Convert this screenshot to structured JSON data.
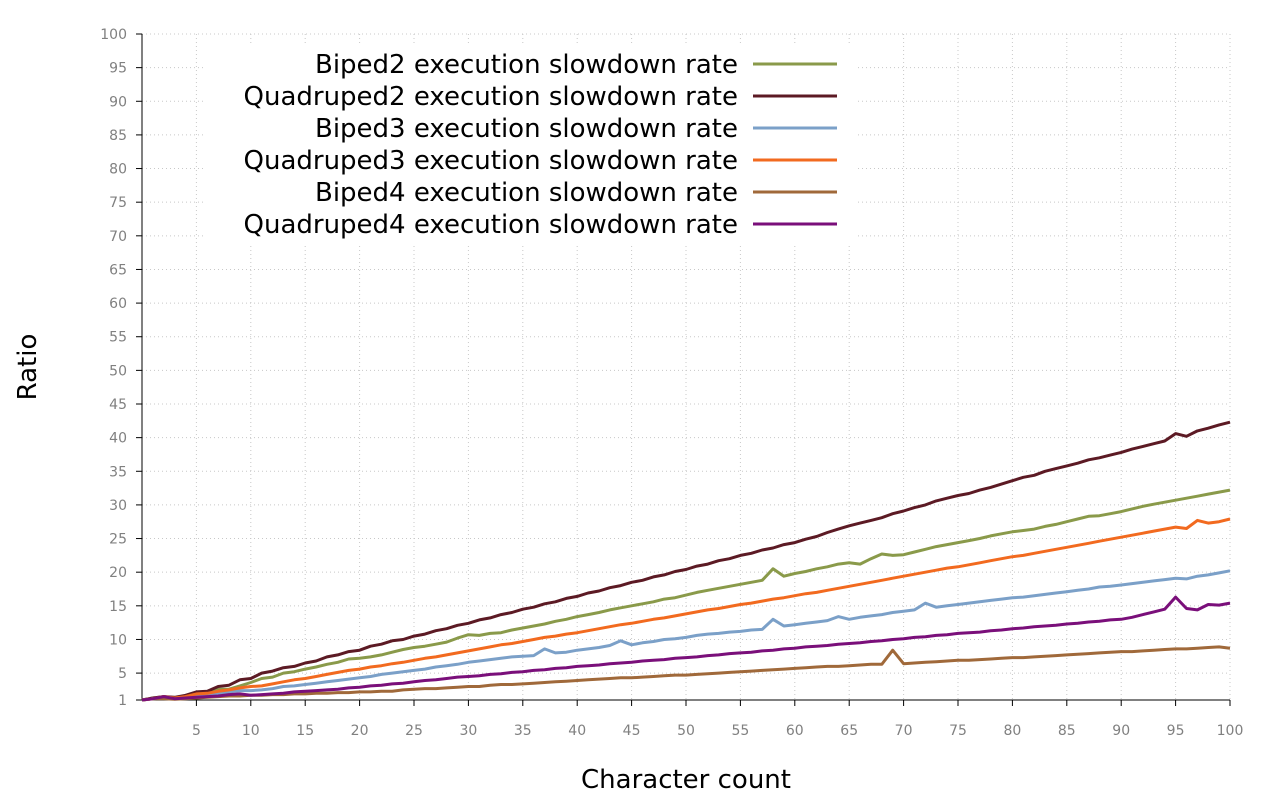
{
  "chart_data": {
    "type": "line",
    "title": "",
    "xlabel": "Character count",
    "ylabel": "Ratio",
    "xlim": [
      0,
      100
    ],
    "ylim": [
      1,
      100
    ],
    "x_ticks": [
      5,
      10,
      15,
      20,
      25,
      30,
      35,
      40,
      45,
      50,
      55,
      60,
      65,
      70,
      75,
      80,
      85,
      90,
      95,
      100
    ],
    "y_ticks": [
      1,
      5,
      10,
      15,
      20,
      25,
      30,
      35,
      40,
      45,
      50,
      55,
      60,
      65,
      70,
      75,
      80,
      85,
      90,
      95,
      100
    ],
    "grid": true,
    "legend_position": "top-left",
    "x": [
      0,
      1,
      2,
      3,
      4,
      5,
      6,
      7,
      8,
      9,
      10,
      11,
      12,
      13,
      14,
      15,
      16,
      17,
      18,
      19,
      20,
      21,
      22,
      23,
      24,
      25,
      26,
      27,
      28,
      29,
      30,
      31,
      32,
      33,
      34,
      35,
      36,
      37,
      38,
      39,
      40,
      41,
      42,
      43,
      44,
      45,
      46,
      47,
      48,
      49,
      50,
      51,
      52,
      53,
      54,
      55,
      56,
      57,
      58,
      59,
      60,
      61,
      62,
      63,
      64,
      65,
      66,
      67,
      68,
      69,
      70,
      71,
      72,
      73,
      74,
      75,
      76,
      77,
      78,
      79,
      80,
      81,
      82,
      83,
      84,
      85,
      86,
      87,
      88,
      89,
      90,
      91,
      92,
      93,
      94,
      95,
      96,
      97,
      98,
      99,
      100
    ],
    "series": [
      {
        "name": "Biped2 execution slowdown rate",
        "color": "#8a9a4a",
        "values": [
          1.0,
          1.3,
          1.5,
          1.3,
          1.4,
          1.8,
          2.0,
          2.6,
          2.6,
          3.1,
          3.6,
          4.2,
          4.4,
          5.0,
          5.2,
          5.6,
          5.9,
          6.3,
          6.6,
          7.1,
          7.2,
          7.4,
          7.7,
          8.1,
          8.5,
          8.8,
          9.0,
          9.3,
          9.6,
          10.2,
          10.7,
          10.6,
          10.9,
          11.0,
          11.4,
          11.7,
          12.0,
          12.3,
          12.7,
          13.0,
          13.4,
          13.7,
          14.0,
          14.4,
          14.7,
          15.0,
          15.3,
          15.6,
          16.0,
          16.2,
          16.6,
          17.0,
          17.3,
          17.6,
          17.9,
          18.2,
          18.5,
          18.8,
          20.5,
          19.4,
          19.8,
          20.1,
          20.5,
          20.8,
          21.2,
          21.4,
          21.2,
          22.0,
          22.7,
          22.5,
          22.6,
          23.0,
          23.4,
          23.8,
          24.1,
          24.4,
          24.7,
          25.0,
          25.4,
          25.7,
          26.0,
          26.2,
          26.4,
          26.8,
          27.1,
          27.5,
          27.9,
          28.3,
          28.4,
          28.7,
          29.0,
          29.4,
          29.8,
          30.1,
          30.4,
          30.7,
          31.0,
          31.3,
          31.6,
          31.9,
          32.2
        ]
      },
      {
        "name": "Quadruped2 execution slowdown rate",
        "color": "#5c1a24",
        "values": [
          1.0,
          1.3,
          1.5,
          1.4,
          1.7,
          2.2,
          2.3,
          3.0,
          3.2,
          4.0,
          4.2,
          5.0,
          5.3,
          5.8,
          6.0,
          6.5,
          6.8,
          7.4,
          7.7,
          8.2,
          8.4,
          9.0,
          9.3,
          9.8,
          10.0,
          10.5,
          10.8,
          11.3,
          11.6,
          12.1,
          12.4,
          12.9,
          13.2,
          13.7,
          14.0,
          14.5,
          14.8,
          15.3,
          15.6,
          16.1,
          16.4,
          16.9,
          17.2,
          17.7,
          18.0,
          18.5,
          18.8,
          19.3,
          19.6,
          20.1,
          20.4,
          20.9,
          21.2,
          21.7,
          22.0,
          22.5,
          22.8,
          23.3,
          23.6,
          24.1,
          24.4,
          24.9,
          25.3,
          25.9,
          26.4,
          26.9,
          27.3,
          27.7,
          28.1,
          28.7,
          29.1,
          29.6,
          30.0,
          30.6,
          31.0,
          31.4,
          31.7,
          32.2,
          32.6,
          33.1,
          33.6,
          34.1,
          34.4,
          35.0,
          35.4,
          35.8,
          36.2,
          36.7,
          37.0,
          37.4,
          37.8,
          38.3,
          38.7,
          39.1,
          39.5,
          40.6,
          40.2,
          41.0,
          41.4,
          41.9,
          42.3
        ]
      },
      {
        "name": "Biped3 execution slowdown rate",
        "color": "#7ba0c8",
        "values": [
          1.0,
          1.2,
          1.3,
          1.2,
          1.3,
          1.5,
          1.7,
          2.0,
          2.2,
          2.4,
          2.4,
          2.5,
          2.7,
          3.0,
          3.1,
          3.3,
          3.5,
          3.7,
          3.9,
          4.1,
          4.3,
          4.5,
          4.8,
          5.0,
          5.2,
          5.4,
          5.6,
          5.9,
          6.1,
          6.3,
          6.6,
          6.8,
          7.0,
          7.2,
          7.4,
          7.5,
          7.6,
          8.6,
          8.0,
          8.1,
          8.4,
          8.6,
          8.8,
          9.1,
          9.8,
          9.2,
          9.5,
          9.7,
          10.0,
          10.1,
          10.3,
          10.6,
          10.8,
          10.9,
          11.1,
          11.2,
          11.4,
          11.5,
          13.0,
          12.0,
          12.2,
          12.4,
          12.6,
          12.8,
          13.4,
          13.0,
          13.3,
          13.5,
          13.7,
          14.0,
          14.2,
          14.4,
          15.4,
          14.8,
          15.0,
          15.2,
          15.4,
          15.6,
          15.8,
          16.0,
          16.2,
          16.3,
          16.5,
          16.7,
          16.9,
          17.1,
          17.3,
          17.5,
          17.8,
          17.9,
          18.1,
          18.3,
          18.5,
          18.7,
          18.9,
          19.1,
          19.0,
          19.4,
          19.6,
          19.9,
          20.2
        ]
      },
      {
        "name": "Quadruped3 execution slowdown rate",
        "color": "#f26a1f",
        "values": [
          1.0,
          1.2,
          1.5,
          1.3,
          1.5,
          1.9,
          2.0,
          2.3,
          2.5,
          2.8,
          3.0,
          3.1,
          3.4,
          3.7,
          4.0,
          4.2,
          4.5,
          4.8,
          5.1,
          5.4,
          5.6,
          5.9,
          6.1,
          6.4,
          6.6,
          6.9,
          7.2,
          7.4,
          7.7,
          8.0,
          8.3,
          8.6,
          8.9,
          9.2,
          9.4,
          9.7,
          10.0,
          10.3,
          10.5,
          10.8,
          11.0,
          11.3,
          11.6,
          11.9,
          12.2,
          12.4,
          12.7,
          13.0,
          13.2,
          13.5,
          13.8,
          14.1,
          14.4,
          14.6,
          14.9,
          15.2,
          15.4,
          15.7,
          16.0,
          16.2,
          16.5,
          16.8,
          17.0,
          17.3,
          17.6,
          17.9,
          18.2,
          18.5,
          18.8,
          19.1,
          19.4,
          19.7,
          20.0,
          20.3,
          20.6,
          20.8,
          21.1,
          21.4,
          21.7,
          22.0,
          22.3,
          22.5,
          22.8,
          23.1,
          23.4,
          23.7,
          24.0,
          24.3,
          24.6,
          24.9,
          25.2,
          25.5,
          25.8,
          26.1,
          26.4,
          26.7,
          26.5,
          27.7,
          27.3,
          27.5,
          27.9
        ]
      },
      {
        "name": "Biped4 execution slowdown rate",
        "color": "#a0693a",
        "values": [
          1.0,
          1.2,
          1.2,
          1.1,
          1.2,
          1.3,
          1.4,
          1.5,
          1.6,
          1.6,
          1.7,
          1.7,
          1.8,
          1.8,
          1.9,
          1.9,
          2.0,
          2.0,
          2.1,
          2.1,
          2.2,
          2.2,
          2.3,
          2.3,
          2.5,
          2.6,
          2.7,
          2.7,
          2.8,
          2.9,
          3.0,
          3.0,
          3.2,
          3.3,
          3.3,
          3.4,
          3.5,
          3.6,
          3.7,
          3.8,
          3.9,
          4.0,
          4.1,
          4.2,
          4.3,
          4.3,
          4.4,
          4.5,
          4.6,
          4.7,
          4.7,
          4.8,
          4.9,
          5.0,
          5.1,
          5.2,
          5.3,
          5.4,
          5.5,
          5.6,
          5.7,
          5.8,
          5.9,
          6.0,
          6.0,
          6.1,
          6.2,
          6.3,
          6.3,
          8.4,
          6.4,
          6.5,
          6.6,
          6.7,
          6.8,
          6.9,
          6.9,
          7.0,
          7.1,
          7.2,
          7.3,
          7.3,
          7.4,
          7.5,
          7.6,
          7.7,
          7.8,
          7.9,
          8.0,
          8.1,
          8.2,
          8.2,
          8.3,
          8.4,
          8.5,
          8.6,
          8.6,
          8.7,
          8.8,
          8.9,
          8.7
        ]
      },
      {
        "name": "Quadruped4 execution slowdown rate",
        "color": "#7a0f7a",
        "values": [
          1.0,
          1.2,
          1.5,
          1.2,
          1.3,
          1.4,
          1.5,
          1.6,
          1.8,
          1.9,
          1.7,
          1.8,
          1.9,
          2.0,
          2.2,
          2.3,
          2.4,
          2.5,
          2.6,
          2.8,
          2.9,
          3.1,
          3.2,
          3.4,
          3.5,
          3.7,
          3.9,
          4.0,
          4.2,
          4.4,
          4.5,
          4.6,
          4.8,
          4.9,
          5.1,
          5.2,
          5.4,
          5.5,
          5.7,
          5.8,
          6.0,
          6.1,
          6.2,
          6.4,
          6.5,
          6.6,
          6.8,
          6.9,
          7.0,
          7.2,
          7.3,
          7.4,
          7.6,
          7.7,
          7.9,
          8.0,
          8.1,
          8.3,
          8.4,
          8.6,
          8.7,
          8.9,
          9.0,
          9.1,
          9.3,
          9.4,
          9.5,
          9.7,
          9.8,
          10.0,
          10.1,
          10.3,
          10.4,
          10.6,
          10.7,
          10.9,
          11.0,
          11.1,
          11.3,
          11.4,
          11.6,
          11.7,
          11.9,
          12.0,
          12.1,
          12.3,
          12.4,
          12.6,
          12.7,
          12.9,
          13.0,
          13.3,
          13.7,
          14.1,
          14.5,
          16.3,
          14.6,
          14.4,
          15.2,
          15.1,
          15.4
        ]
      }
    ]
  }
}
